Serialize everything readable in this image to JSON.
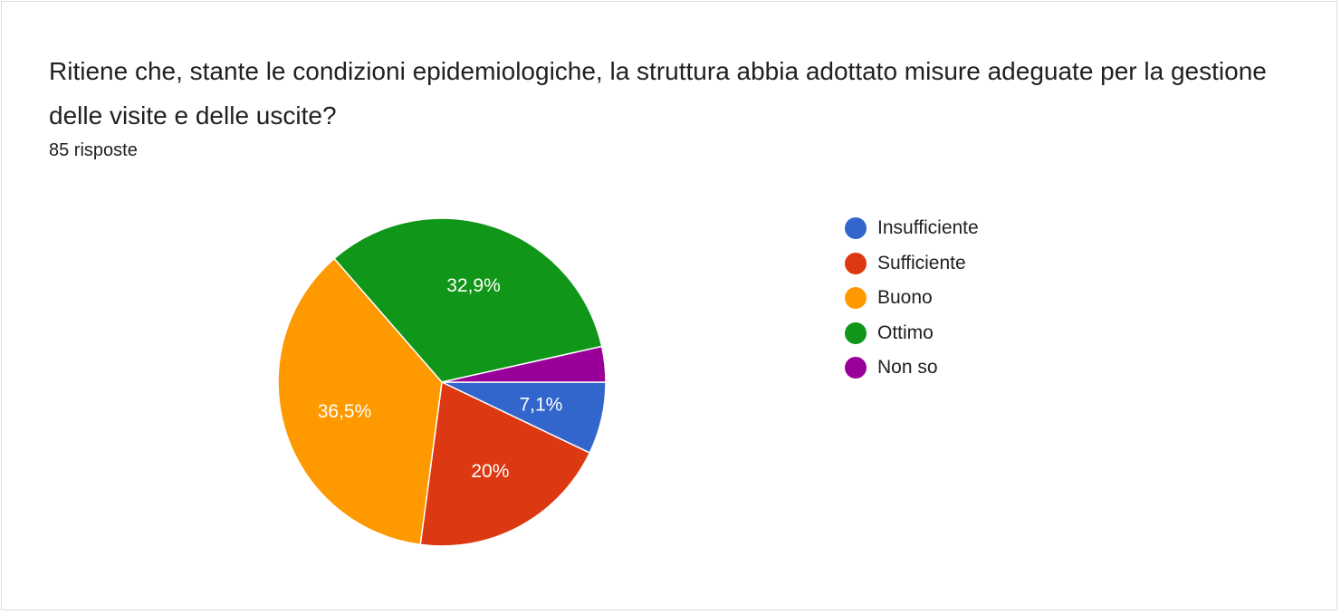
{
  "question": {
    "title": "Ritiene che, stante le condizioni epidemiologiche, la struttura abbia adottato misure adeguate per la gestione delle visite e delle uscite?",
    "responses": "85 risposte"
  },
  "chart_data": {
    "type": "pie",
    "title": "Ritiene che, stante le condizioni epidemiologiche, la struttura abbia adottato misure adeguate per la gestione delle visite e delle uscite?",
    "total_responses": 85,
    "legend_position": "right",
    "slices": [
      {
        "label": "Insufficiente",
        "value": 7.1,
        "display": "7,1%",
        "color": "#3366cc"
      },
      {
        "label": "Sufficiente",
        "value": 20.0,
        "display": "20%",
        "color": "#dc3912"
      },
      {
        "label": "Buono",
        "value": 36.5,
        "display": "36,5%",
        "color": "#ff9900"
      },
      {
        "label": "Ottimo",
        "value": 32.9,
        "display": "32,9%",
        "color": "#109618"
      },
      {
        "label": "Non so",
        "value": 3.5,
        "display": "",
        "color": "#990099"
      }
    ]
  }
}
